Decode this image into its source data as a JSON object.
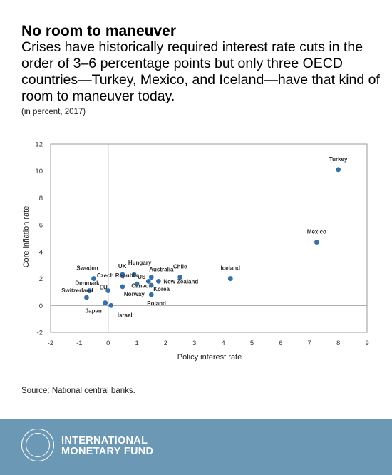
{
  "header": {
    "title": "No room to maneuver",
    "subtitle": "Crises have historically required interest rate cuts in the order of 3–6 percentage points but only three OECD countries—Turkey, Mexico, and Iceland—have that kind of room to maneuver today.",
    "note": "(in percent, 2017)"
  },
  "chart_data": {
    "type": "scatter",
    "xlabel": "Policy interest rate",
    "ylabel": "Core inflation rate",
    "xlim": [
      -2,
      9
    ],
    "ylim": [
      -2,
      12
    ],
    "xticks": [
      -2,
      -1,
      0,
      1,
      2,
      3,
      4,
      5,
      6,
      7,
      8,
      9
    ],
    "yticks": [
      -2,
      0,
      2,
      4,
      6,
      8,
      10,
      12
    ],
    "grid": false,
    "point_color": "#3a6fa5",
    "points": [
      {
        "label": "Turkey",
        "x": 8.0,
        "y": 10.1
      },
      {
        "label": "Mexico",
        "x": 7.25,
        "y": 4.7
      },
      {
        "label": "Iceland",
        "x": 4.25,
        "y": 2.0
      },
      {
        "label": "Chile",
        "x": 2.5,
        "y": 2.1
      },
      {
        "label": "New Zealand",
        "x": 1.75,
        "y": 1.8
      },
      {
        "label": "Australia",
        "x": 1.5,
        "y": 2.1
      },
      {
        "label": "Hungary",
        "x": 0.9,
        "y": 2.3
      },
      {
        "label": "US",
        "x": 1.0,
        "y": 1.6
      },
      {
        "label": "UK",
        "x": 0.5,
        "y": 2.3
      },
      {
        "label": "Czech Republic",
        "x": 0.5,
        "y": 2.2
      },
      {
        "label": "Canada",
        "x": 1.4,
        "y": 1.8
      },
      {
        "label": "Korea",
        "x": 1.5,
        "y": 1.5
      },
      {
        "label": "Norway",
        "x": 0.5,
        "y": 1.4
      },
      {
        "label": "Poland",
        "x": 1.5,
        "y": 0.8
      },
      {
        "label": "Sweden",
        "x": -0.5,
        "y": 2.0
      },
      {
        "label": "Denmark",
        "x": -0.65,
        "y": 1.1
      },
      {
        "label": "EU",
        "x": 0.0,
        "y": 1.1
      },
      {
        "label": "Switzerland",
        "x": -0.75,
        "y": 0.6
      },
      {
        "label": "Japan",
        "x": -0.1,
        "y": 0.2
      },
      {
        "label": "Israel",
        "x": 0.1,
        "y": 0.0
      }
    ]
  },
  "source": "Source: National central banks.",
  "footer": {
    "org_line1": "INTERNATIONAL",
    "org_line2": "MONETARY FUND",
    "seal_text": "INTERNATIONAL MONETARY FUND",
    "background": "#6b98b5"
  }
}
